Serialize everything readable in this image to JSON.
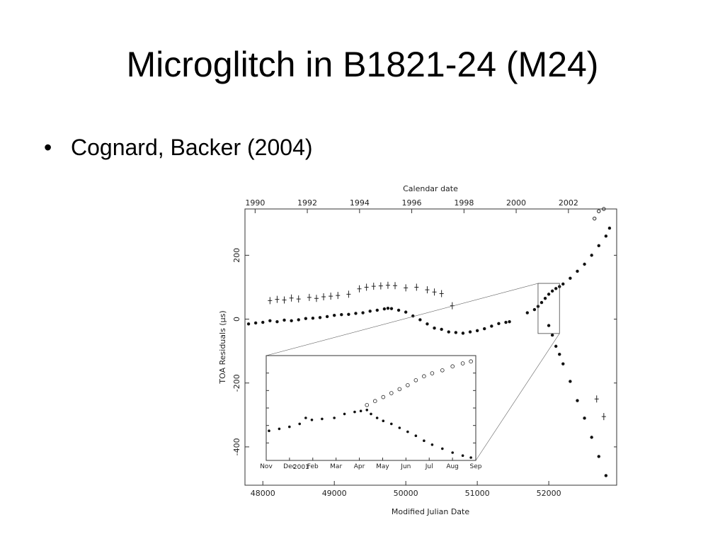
{
  "slide": {
    "title": "Microglitch in B1821-24 (M24)",
    "bullet": "Cognard, Backer (2004)"
  },
  "chart_data": {
    "type": "scatter",
    "title": "",
    "xlabel": "Modified Julian Date",
    "ylabel": "TOA Residuals (μs)",
    "x2label": "Calendar date",
    "xlim": [
      47750,
      52950
    ],
    "ylim": [
      -520,
      345
    ],
    "xticks": [
      48000,
      49000,
      50000,
      51000,
      52000
    ],
    "yticks": [
      200,
      0,
      -200,
      -400
    ],
    "top_ticks": [
      {
        "label": "1990",
        "mjd": 47892
      },
      {
        "label": "1992",
        "mjd": 48622
      },
      {
        "label": "1994",
        "mjd": 49353
      },
      {
        "label": "1996",
        "mjd": 50083
      },
      {
        "label": "1998",
        "mjd": 50814
      },
      {
        "label": "2000",
        "mjd": 51544
      },
      {
        "label": "2002",
        "mjd": 52275
      }
    ],
    "grid": false,
    "series": [
      {
        "marker": "plus",
        "points": [
          [
            48100,
            58
          ],
          [
            48200,
            62
          ],
          [
            48300,
            60
          ],
          [
            48400,
            66
          ],
          [
            48500,
            63
          ],
          [
            48650,
            68
          ],
          [
            48750,
            65
          ],
          [
            48850,
            70
          ],
          [
            48950,
            72
          ],
          [
            49050,
            74
          ],
          [
            49200,
            78
          ],
          [
            49350,
            95
          ],
          [
            49450,
            100
          ],
          [
            49550,
            103
          ],
          [
            49650,
            104
          ],
          [
            49750,
            106
          ],
          [
            49850,
            105
          ],
          [
            50000,
            98
          ],
          [
            50150,
            100
          ],
          [
            50300,
            92
          ],
          [
            50400,
            85
          ],
          [
            50500,
            80
          ],
          [
            50650,
            42
          ],
          [
            52670,
            -250
          ],
          [
            52770,
            -305
          ]
        ]
      },
      {
        "marker": "dot",
        "points": [
          [
            47800,
            -15
          ],
          [
            47900,
            -12
          ],
          [
            48000,
            -10
          ],
          [
            48100,
            -5
          ],
          [
            48200,
            -8
          ],
          [
            48300,
            -3
          ],
          [
            48400,
            -5
          ],
          [
            48500,
            -2
          ],
          [
            48600,
            2
          ],
          [
            48700,
            3
          ],
          [
            48800,
            5
          ],
          [
            48900,
            8
          ],
          [
            49000,
            12
          ],
          [
            49100,
            14
          ],
          [
            49200,
            15
          ],
          [
            49300,
            18
          ],
          [
            49400,
            20
          ],
          [
            49500,
            25
          ],
          [
            49600,
            28
          ],
          [
            49700,
            32
          ],
          [
            49750,
            34
          ],
          [
            49800,
            33
          ],
          [
            49900,
            28
          ],
          [
            50000,
            22
          ],
          [
            50100,
            10
          ],
          [
            50200,
            -2
          ],
          [
            50300,
            -15
          ],
          [
            50400,
            -28
          ],
          [
            50500,
            -32
          ],
          [
            50600,
            -40
          ],
          [
            50700,
            -42
          ],
          [
            50800,
            -44
          ],
          [
            50900,
            -40
          ],
          [
            51000,
            -36
          ],
          [
            51100,
            -30
          ],
          [
            51200,
            -22
          ],
          [
            51300,
            -14
          ],
          [
            51400,
            -10
          ],
          [
            51450,
            -8
          ],
          [
            51700,
            20
          ],
          [
            51800,
            30
          ],
          [
            51850,
            40
          ],
          [
            51900,
            52
          ],
          [
            51950,
            65
          ],
          [
            52000,
            78
          ],
          [
            52050,
            88
          ],
          [
            52100,
            96
          ],
          [
            52150,
            102
          ],
          [
            52200,
            110
          ],
          [
            52300,
            128
          ],
          [
            52400,
            150
          ],
          [
            52500,
            172
          ],
          [
            52600,
            200
          ],
          [
            52700,
            230
          ],
          [
            52800,
            260
          ],
          [
            52850,
            285
          ],
          [
            52000,
            -20
          ],
          [
            52050,
            -50
          ],
          [
            52100,
            -85
          ],
          [
            52150,
            -110
          ],
          [
            52200,
            -140
          ],
          [
            52300,
            -195
          ],
          [
            52400,
            -255
          ],
          [
            52500,
            -310
          ],
          [
            52600,
            -370
          ],
          [
            52700,
            -430
          ],
          [
            52800,
            -490
          ]
        ]
      },
      {
        "marker": "open-circle",
        "points": [
          [
            52640,
            315
          ],
          [
            52700,
            338
          ],
          [
            52770,
            345
          ]
        ]
      }
    ],
    "inset": {
      "x_labels": [
        "Nov",
        "Dec",
        "Feb",
        "Mar",
        "Apr",
        "May",
        "Jun",
        "Jul",
        "Aug",
        "Sep"
      ],
      "year_label": "2001",
      "filled_points": [
        [
          0,
          0.73
        ],
        [
          0.05,
          0.71
        ],
        [
          0.1,
          0.69
        ],
        [
          0.15,
          0.66
        ],
        [
          0.18,
          0.6
        ],
        [
          0.21,
          0.62
        ],
        [
          0.26,
          0.61
        ],
        [
          0.32,
          0.6
        ],
        [
          0.37,
          0.56
        ],
        [
          0.42,
          0.54
        ],
        [
          0.45,
          0.53
        ],
        [
          0.48,
          0.52
        ],
        [
          0.5,
          0.56
        ],
        [
          0.53,
          0.6
        ],
        [
          0.56,
          0.63
        ],
        [
          0.6,
          0.66
        ],
        [
          0.64,
          0.7
        ],
        [
          0.68,
          0.74
        ],
        [
          0.72,
          0.78
        ],
        [
          0.76,
          0.83
        ],
        [
          0.8,
          0.87
        ],
        [
          0.85,
          0.91
        ],
        [
          0.9,
          0.95
        ],
        [
          0.95,
          0.98
        ],
        [
          0.99,
          1.0
        ]
      ],
      "open_points": [
        [
          0.48,
          0.47
        ],
        [
          0.52,
          0.43
        ],
        [
          0.56,
          0.39
        ],
        [
          0.6,
          0.35
        ],
        [
          0.64,
          0.31
        ],
        [
          0.68,
          0.27
        ],
        [
          0.72,
          0.22
        ],
        [
          0.76,
          0.18
        ],
        [
          0.8,
          0.15
        ],
        [
          0.85,
          0.12
        ],
        [
          0.9,
          0.08
        ],
        [
          0.95,
          0.05
        ],
        [
          0.99,
          0.03
        ]
      ]
    }
  }
}
